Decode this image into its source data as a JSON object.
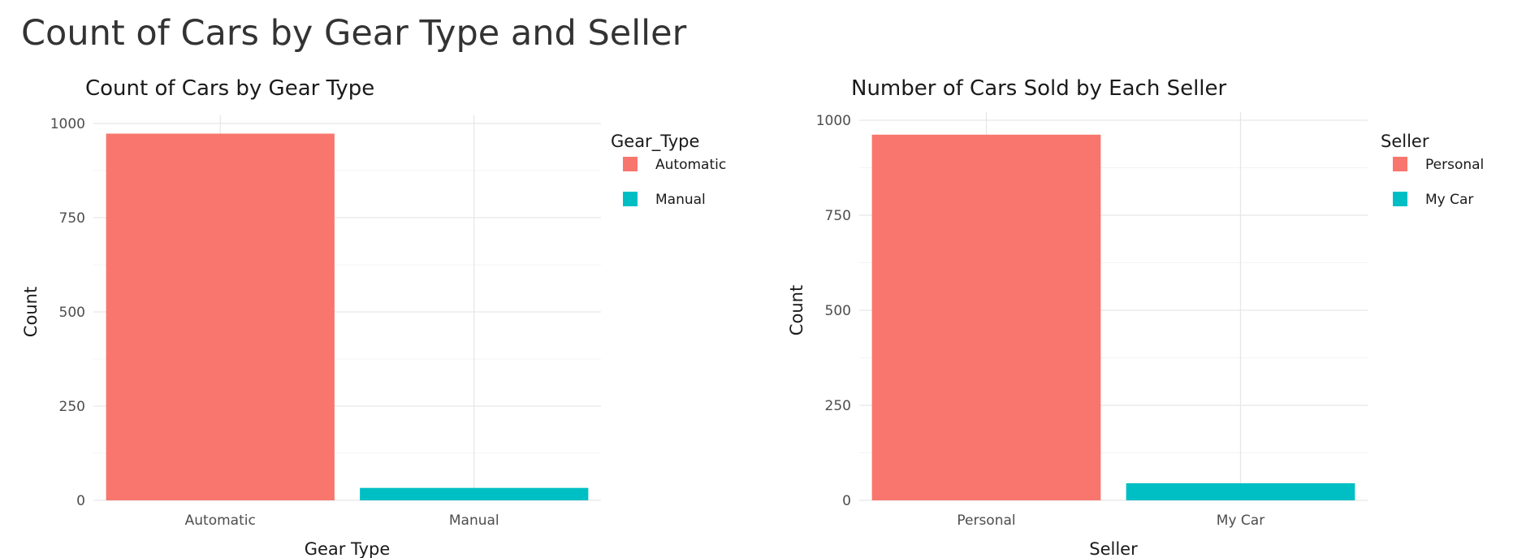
{
  "page": {
    "title": "Count of Cars by Gear Type and Seller"
  },
  "chart_data": [
    {
      "type": "bar",
      "title": "Count of Cars by Gear Type",
      "xlabel": "Gear Type",
      "ylabel": "Count",
      "categories": [
        "Automatic",
        "Manual"
      ],
      "values": [
        973,
        33
      ],
      "colors": [
        "#F8766D",
        "#00BFC4"
      ],
      "ylim": [
        0,
        1000
      ],
      "yticks": [
        0,
        250,
        500,
        750,
        1000
      ],
      "grid": true,
      "legend": {
        "title": "Gear_Type",
        "placement": "right",
        "entries": [
          "Automatic",
          "Manual"
        ]
      }
    },
    {
      "type": "bar",
      "title": "Number of Cars Sold by Each Seller",
      "xlabel": "Seller",
      "ylabel": "Count",
      "categories": [
        "Personal",
        "My Car"
      ],
      "values": [
        962,
        45
      ],
      "colors": [
        "#F8766D",
        "#00BFC4"
      ],
      "ylim": [
        0,
        1000
      ],
      "yticks": [
        0,
        250,
        500,
        750,
        1000
      ],
      "grid": true,
      "legend": {
        "title": "Seller",
        "placement": "right",
        "entries": [
          "Personal",
          "My Car"
        ]
      }
    }
  ]
}
